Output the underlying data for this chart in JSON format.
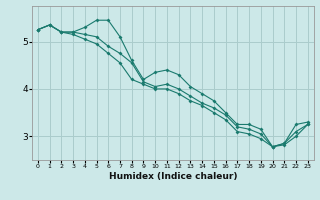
{
  "title": "",
  "xlabel": "Humidex (Indice chaleur)",
  "ylabel": "",
  "background_color": "#cce8e8",
  "grid_color": "#aacccc",
  "line_color": "#1a7a6e",
  "xlim": [
    -0.5,
    23.5
  ],
  "ylim": [
    2.5,
    5.75
  ],
  "yticks": [
    3,
    4,
    5
  ],
  "xticks": [
    0,
    1,
    2,
    3,
    4,
    5,
    6,
    7,
    8,
    9,
    10,
    11,
    12,
    13,
    14,
    15,
    16,
    17,
    18,
    19,
    20,
    21,
    22,
    23
  ],
  "x": [
    0,
    1,
    2,
    3,
    4,
    5,
    6,
    7,
    8,
    9,
    10,
    11,
    12,
    13,
    14,
    15,
    16,
    17,
    18,
    19,
    20,
    21,
    22,
    23
  ],
  "y_max": [
    5.25,
    5.35,
    5.2,
    5.2,
    5.3,
    5.45,
    5.45,
    5.1,
    4.6,
    4.2,
    4.35,
    4.4,
    4.3,
    4.05,
    3.9,
    3.75,
    3.5,
    3.25,
    3.25,
    3.15,
    2.78,
    2.85,
    3.25,
    3.3
  ],
  "y_mean": [
    5.25,
    5.35,
    5.2,
    5.2,
    5.15,
    5.1,
    4.9,
    4.75,
    4.55,
    4.15,
    4.05,
    4.1,
    4.0,
    3.85,
    3.7,
    3.6,
    3.45,
    3.2,
    3.15,
    3.05,
    2.78,
    2.85,
    3.1,
    3.25
  ],
  "y_min": [
    5.25,
    5.35,
    5.2,
    5.15,
    5.05,
    4.95,
    4.75,
    4.55,
    4.2,
    4.1,
    4.0,
    4.0,
    3.9,
    3.75,
    3.65,
    3.5,
    3.35,
    3.1,
    3.05,
    2.95,
    2.78,
    2.82,
    3.0,
    3.25
  ]
}
